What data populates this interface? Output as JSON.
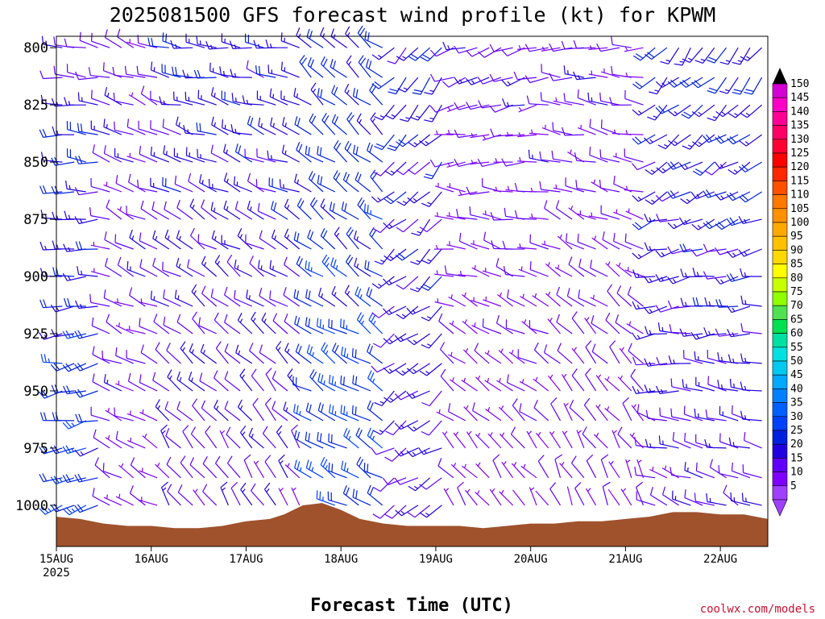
{
  "chart_data": {
    "type": "wind_barbs",
    "title": "2025081500 GFS forecast wind profile (kt) for KPWM",
    "xlabel": "Forecast Time (UTC)",
    "credit": "coolwx.com/models",
    "y_axis": {
      "unit": "hPa",
      "range": [
        1018,
        795
      ],
      "ticks": [
        "800",
        "825",
        "850",
        "875",
        "900",
        "925",
        "950",
        "975",
        "1000"
      ],
      "tick_values": [
        800,
        825,
        850,
        875,
        900,
        925,
        950,
        975,
        1000
      ],
      "levels": [
        800,
        813,
        825,
        838,
        850,
        863,
        875,
        888,
        900,
        913,
        925,
        938,
        950,
        963,
        975,
        988,
        1000,
        1013
      ]
    },
    "x_axis": {
      "range_days": [
        15.0,
        22.5
      ],
      "ticks": [
        "15AUG",
        "16AUG",
        "17AUG",
        "18AUG",
        "19AUG",
        "20AUG",
        "21AUG",
        "22AUG"
      ],
      "tick_days": [
        15,
        16,
        17,
        18,
        19,
        20,
        21,
        22
      ],
      "first_tick_year": "2025",
      "step_hours": 3
    },
    "colorbar": {
      "labels": [
        "150",
        "145",
        "140",
        "135",
        "130",
        "125",
        "120",
        "115",
        "110",
        "105",
        "100",
        "95",
        "90",
        "85",
        "80",
        "75",
        "70",
        "65",
        "60",
        "55",
        "50",
        "45",
        "40",
        "35",
        "30",
        "25",
        "20",
        "15",
        "10",
        "5"
      ],
      "colors": [
        "#d400d4",
        "#ff00c8",
        "#ff0096",
        "#ff0064",
        "#ff0032",
        "#ff0000",
        "#ff2800",
        "#ff5000",
        "#ff7800",
        "#ff9000",
        "#ffa800",
        "#ffc000",
        "#ffd800",
        "#ffff00",
        "#c8ff00",
        "#90ff00",
        "#50e050",
        "#00e050",
        "#00e0a0",
        "#00e0e0",
        "#00c8f0",
        "#00a8ff",
        "#0080ff",
        "#0060ff",
        "#0040ff",
        "#0020e0",
        "#2000e0",
        "#6000ff",
        "#8000ff",
        "#a040ff"
      ],
      "top_arrow_color": "#000000",
      "bottom_arrow_color": "#a040ff"
    },
    "terrain": {
      "color": "#a0522d",
      "points": [
        [
          15.0,
          1005
        ],
        [
          15.25,
          1006
        ],
        [
          15.5,
          1008
        ],
        [
          15.75,
          1009
        ],
        [
          16.0,
          1009
        ],
        [
          16.25,
          1010
        ],
        [
          16.5,
          1010
        ],
        [
          16.75,
          1009
        ],
        [
          17.0,
          1007
        ],
        [
          17.25,
          1006
        ],
        [
          17.4,
          1004
        ],
        [
          17.6,
          1000
        ],
        [
          17.8,
          999
        ],
        [
          18.0,
          1002
        ],
        [
          18.2,
          1006
        ],
        [
          18.45,
          1008
        ],
        [
          18.7,
          1009
        ],
        [
          19.0,
          1009
        ],
        [
          19.25,
          1009
        ],
        [
          19.5,
          1010
        ],
        [
          19.75,
          1009
        ],
        [
          20.0,
          1008
        ],
        [
          20.25,
          1008
        ],
        [
          20.5,
          1007
        ],
        [
          20.75,
          1007
        ],
        [
          21.0,
          1006
        ],
        [
          21.25,
          1005
        ],
        [
          21.5,
          1003
        ],
        [
          21.75,
          1003
        ],
        [
          22.0,
          1004
        ],
        [
          22.25,
          1004
        ],
        [
          22.5,
          1006
        ]
      ]
    },
    "wind_regimes": [
      {
        "t0": 15.0,
        "t1": 15.5,
        "dir_top": 280,
        "dir_bottom": 250,
        "spd_top": 15,
        "spd_bottom": 25
      },
      {
        "t0": 15.5,
        "t1": 16.1,
        "dir_top": 290,
        "dir_bottom": 300,
        "spd_top": 12,
        "spd_bottom": 10
      },
      {
        "t0": 16.1,
        "t1": 17.6,
        "dir_top": 280,
        "dir_bottom": 330,
        "spd_top": 18,
        "spd_bottom": 12
      },
      {
        "t0": 17.6,
        "t1": 18.5,
        "dir_top": 310,
        "dir_bottom": 300,
        "spd_top": 20,
        "spd_bottom": 25
      },
      {
        "t0": 18.5,
        "t1": 19.1,
        "dir_top": 220,
        "dir_bottom": 240,
        "spd_top": 18,
        "spd_bottom": 15
      },
      {
        "t0": 19.1,
        "t1": 20.2,
        "dir_top": 250,
        "dir_bottom": 330,
        "spd_top": 12,
        "spd_bottom": 8
      },
      {
        "t0": 20.2,
        "t1": 21.2,
        "dir_top": 270,
        "dir_bottom": 340,
        "spd_top": 12,
        "spd_bottom": 8
      },
      {
        "t0": 21.2,
        "t1": 22.5,
        "dir_top": 220,
        "dir_bottom": 300,
        "spd_top": 20,
        "spd_bottom": 12
      }
    ]
  }
}
